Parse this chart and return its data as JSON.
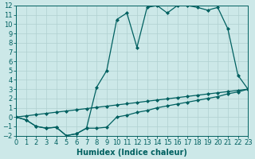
{
  "xlabel": "Humidex (Indice chaleur)",
  "xlim": [
    0,
    23
  ],
  "ylim": [
    -2,
    12
  ],
  "xticks": [
    0,
    1,
    2,
    3,
    4,
    5,
    6,
    7,
    8,
    9,
    10,
    11,
    12,
    13,
    14,
    15,
    16,
    17,
    18,
    19,
    20,
    21,
    22,
    23
  ],
  "yticks": [
    -2,
    -1,
    0,
    1,
    2,
    3,
    4,
    5,
    6,
    7,
    8,
    9,
    10,
    11,
    12
  ],
  "bg_color": "#cce8e8",
  "grid_color": "#b0d0d0",
  "line_color": "#006060",
  "lines": [
    {
      "x": [
        0,
        1,
        2,
        3,
        4,
        5,
        6,
        7,
        8,
        9,
        10,
        11,
        12,
        13,
        14,
        15,
        16,
        17,
        18,
        19,
        20,
        21,
        22,
        23
      ],
      "y": [
        0,
        0.12,
        0.26,
        0.39,
        0.52,
        0.65,
        0.78,
        0.91,
        1.04,
        1.17,
        1.3,
        1.43,
        1.56,
        1.7,
        1.83,
        1.96,
        2.09,
        2.22,
        2.35,
        2.48,
        2.61,
        2.74,
        2.87,
        3.0
      ]
    },
    {
      "x": [
        0,
        1,
        2,
        3,
        4,
        5,
        6,
        7,
        8,
        9,
        10,
        11,
        12,
        13,
        14,
        15,
        16,
        17,
        18,
        19,
        20,
        21,
        22,
        23
      ],
      "y": [
        0,
        -0.3,
        -1.0,
        -1.2,
        -1.1,
        -2.0,
        -1.8,
        -1.2,
        -1.2,
        -1.1,
        0.0,
        0.2,
        0.5,
        0.7,
        1.0,
        1.2,
        1.4,
        1.6,
        1.8,
        2.0,
        2.2,
        2.5,
        2.7,
        3.0
      ]
    },
    {
      "x": [
        0,
        1,
        2,
        3,
        4,
        5,
        6,
        7,
        8,
        9,
        10,
        11,
        12,
        13,
        14,
        15,
        16,
        17,
        18,
        19,
        20,
        21,
        22,
        23
      ],
      "y": [
        0,
        -0.3,
        -1.0,
        -1.2,
        -1.1,
        -2.0,
        -1.8,
        -1.2,
        3.2,
        5.0,
        10.5,
        11.2,
        7.5,
        11.8,
        12.0,
        11.2,
        12.0,
        12.0,
        11.8,
        11.5,
        11.8,
        9.5,
        4.5,
        3.0
      ]
    }
  ],
  "marker": "D",
  "markersize": 2.0,
  "linewidth": 0.9,
  "tick_fontsize": 6,
  "xlabel_fontsize": 7
}
